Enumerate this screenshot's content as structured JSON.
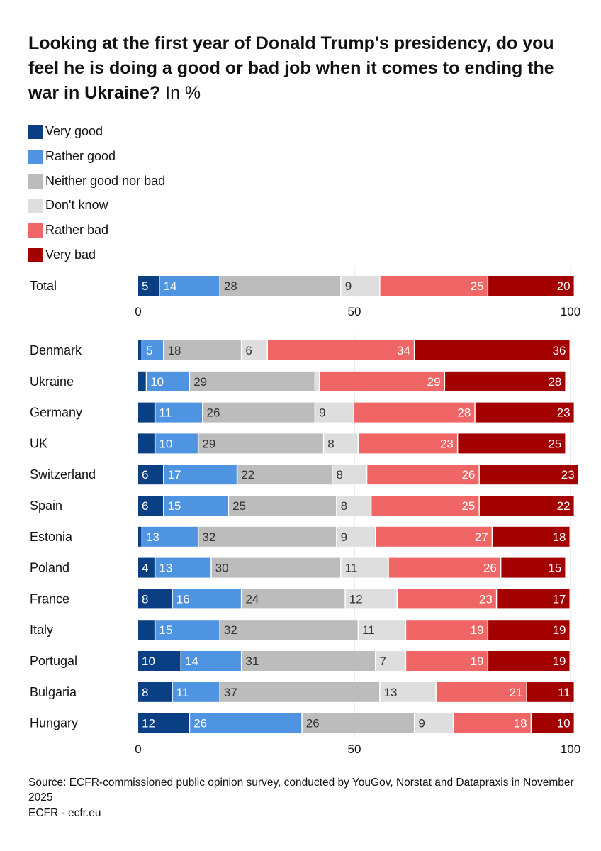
{
  "title": {
    "main": "Looking at the first year of Donald Trump's presidency, do you feel he is doing a good or bad job when it comes to ending the war in Ukraine?",
    "unit": "In %"
  },
  "chart_data": {
    "type": "bar",
    "orientation": "horizontal",
    "stacked": true,
    "xlim": [
      0,
      100
    ],
    "x_ticks": [
      0,
      50,
      100
    ],
    "grid": true,
    "legend_position": "top-left",
    "series": [
      {
        "name": "Very good",
        "color": "#0b3f84",
        "label_color": "#ffffff"
      },
      {
        "name": "Rather good",
        "color": "#4f94e0",
        "label_color": "#ffffff"
      },
      {
        "name": "Neither good nor bad",
        "color": "#bcbcbc",
        "label_color": "#333333"
      },
      {
        "name": "Don't know",
        "color": "#dedede",
        "label_color": "#333333"
      },
      {
        "name": "Rather bad",
        "color": "#f06666",
        "label_color": "#ffffff"
      },
      {
        "name": "Very bad",
        "color": "#a30000",
        "label_color": "#ffffff"
      }
    ],
    "panels": [
      {
        "name": "total",
        "rows": [
          {
            "label": "Total",
            "values": [
              5,
              14,
              28,
              9,
              25,
              20
            ],
            "labels": [
              "5",
              "14",
              "28",
              "9",
              "25",
              "20"
            ]
          }
        ]
      },
      {
        "name": "countries",
        "rows": [
          {
            "label": "Denmark",
            "values": [
              1,
              5,
              18,
              6,
              34,
              36
            ],
            "labels": [
              "",
              "5",
              "18",
              "6",
              "34",
              "36"
            ]
          },
          {
            "label": "Ukraine",
            "values": [
              2,
              10,
              29,
              1,
              29,
              28
            ],
            "labels": [
              "",
              "10",
              "29",
              "",
              "29",
              "28"
            ]
          },
          {
            "label": "Germany",
            "values": [
              4,
              11,
              26,
              9,
              28,
              23
            ],
            "labels": [
              "",
              "11",
              "26",
              "9",
              "28",
              "23"
            ]
          },
          {
            "label": "UK",
            "values": [
              4,
              10,
              29,
              8,
              23,
              25
            ],
            "labels": [
              "",
              "10",
              "29",
              "8",
              "23",
              "25"
            ]
          },
          {
            "label": "Switzerland",
            "values": [
              6,
              17,
              22,
              8,
              26,
              23
            ],
            "labels": [
              "6",
              "17",
              "22",
              "8",
              "26",
              "23"
            ]
          },
          {
            "label": "Spain",
            "values": [
              6,
              15,
              25,
              8,
              25,
              22
            ],
            "labels": [
              "6",
              "15",
              "25",
              "8",
              "25",
              "22"
            ]
          },
          {
            "label": "Estonia",
            "values": [
              1,
              13,
              32,
              9,
              27,
              18
            ],
            "labels": [
              "",
              "13",
              "32",
              "9",
              "27",
              "18"
            ]
          },
          {
            "label": "Poland",
            "values": [
              4,
              13,
              30,
              11,
              26,
              15
            ],
            "labels": [
              "4",
              "13",
              "30",
              "11",
              "26",
              "15"
            ]
          },
          {
            "label": "France",
            "values": [
              8,
              16,
              24,
              12,
              23,
              17
            ],
            "labels": [
              "8",
              "16",
              "24",
              "12",
              "23",
              "17"
            ]
          },
          {
            "label": "Italy",
            "values": [
              4,
              15,
              32,
              11,
              19,
              19
            ],
            "labels": [
              "",
              "15",
              "32",
              "11",
              "19",
              "19"
            ]
          },
          {
            "label": "Portugal",
            "values": [
              10,
              14,
              31,
              7,
              19,
              19
            ],
            "labels": [
              "10",
              "14",
              "31",
              "7",
              "19",
              "19"
            ]
          },
          {
            "label": "Bulgaria",
            "values": [
              8,
              11,
              37,
              13,
              21,
              11
            ],
            "labels": [
              "8",
              "11",
              "37",
              "13",
              "21",
              "11"
            ]
          },
          {
            "label": "Hungary",
            "values": [
              12,
              26,
              26,
              9,
              18,
              10
            ],
            "labels": [
              "12",
              "26",
              "26",
              "9",
              "18",
              "10"
            ]
          }
        ]
      }
    ]
  },
  "footer": {
    "source": "Source: ECFR-commissioned public opinion survey, conducted by YouGov, Norstat and Datapraxis in November 2025",
    "credit": "ECFR · ecfr.eu"
  }
}
